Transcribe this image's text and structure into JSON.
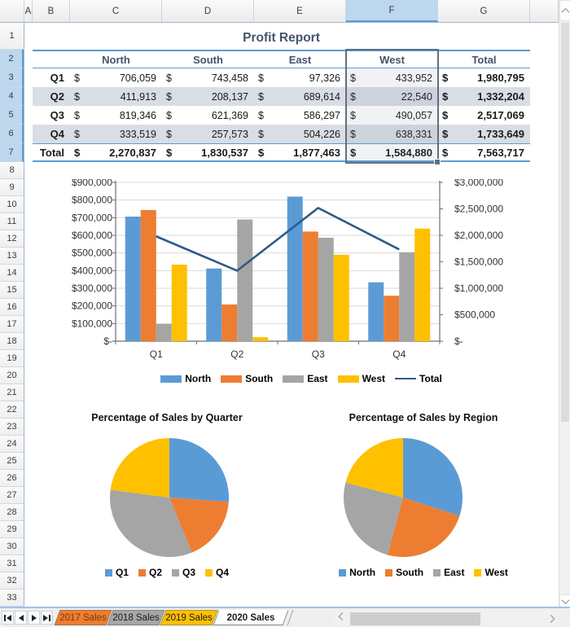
{
  "spreadsheet": {
    "column_letters": [
      "A",
      "B",
      "C",
      "D",
      "E",
      "F",
      "G"
    ],
    "selected_column": "F",
    "selected_row_first": 2,
    "selected_row_last": 7,
    "visible_row_first": 1,
    "visible_row_last": 33
  },
  "report": {
    "title": "Profit Report",
    "currency": "$",
    "table": {
      "region_headers": [
        "North",
        "South",
        "East",
        "West",
        "Total"
      ],
      "rows": [
        {
          "label": "Q1",
          "values": [
            "706,059",
            "743,458",
            "97,326",
            "433,952",
            "1,980,795"
          ]
        },
        {
          "label": "Q2",
          "values": [
            "411,913",
            "208,137",
            "689,614",
            "22,540",
            "1,332,204"
          ]
        },
        {
          "label": "Q3",
          "values": [
            "819,346",
            "621,369",
            "586,297",
            "490,057",
            "2,517,069"
          ]
        },
        {
          "label": "Q4",
          "values": [
            "333,519",
            "257,573",
            "504,226",
            "638,331",
            "1,733,649"
          ]
        },
        {
          "label": "Total",
          "values": [
            "2,270,837",
            "1,830,537",
            "1,877,463",
            "1,584,880",
            "7,563,717"
          ]
        }
      ]
    }
  },
  "chart_data": [
    {
      "type": "bar",
      "subtype": "bar-line-combo",
      "categories": [
        "Q1",
        "Q2",
        "Q3",
        "Q4"
      ],
      "series": [
        {
          "name": "North",
          "kind": "bar",
          "color": "#5B9BD5",
          "axis": "left",
          "values": [
            706059,
            411913,
            819346,
            333519
          ]
        },
        {
          "name": "South",
          "kind": "bar",
          "color": "#ED7D31",
          "axis": "left",
          "values": [
            743458,
            208137,
            621369,
            257573
          ]
        },
        {
          "name": "East",
          "kind": "bar",
          "color": "#A5A5A5",
          "axis": "left",
          "values": [
            97326,
            689614,
            586297,
            504226
          ]
        },
        {
          "name": "West",
          "kind": "bar",
          "color": "#FFC000",
          "axis": "left",
          "values": [
            433952,
            22540,
            490057,
            638331
          ]
        },
        {
          "name": "Total",
          "kind": "line",
          "color": "#2E5A88",
          "axis": "right",
          "values": [
            1980795,
            1332204,
            2517069,
            1733649
          ]
        }
      ],
      "left_axis": {
        "min": 0,
        "max": 900000,
        "step": 100000,
        "tick_labels": [
          "$-",
          "$100,000",
          "$200,000",
          "$300,000",
          "$400,000",
          "$500,000",
          "$600,000",
          "$700,000",
          "$800,000",
          "$900,000"
        ]
      },
      "right_axis": {
        "min": 0,
        "max": 3000000,
        "step": 500000,
        "tick_labels": [
          "$-",
          "$500,000",
          "$1,000,000",
          "$1,500,000",
          "$2,000,000",
          "$2,500,000",
          "$3,000,000"
        ]
      },
      "grid": true,
      "legend_position": "bottom"
    },
    {
      "type": "pie",
      "title": "Percentage of Sales by Quarter",
      "labels": [
        "Q1",
        "Q2",
        "Q3",
        "Q4"
      ],
      "values": [
        1980795,
        1332204,
        2517069,
        1733649
      ],
      "colors": [
        "#5B9BD5",
        "#ED7D31",
        "#A5A5A5",
        "#FFC000"
      ],
      "start_angle": "top",
      "direction": "clockwise",
      "legend_position": "bottom"
    },
    {
      "type": "pie",
      "title": "Percentage of Sales by Region",
      "labels": [
        "North",
        "South",
        "East",
        "West"
      ],
      "values": [
        2270837,
        1830537,
        1877463,
        1584880
      ],
      "colors": [
        "#5B9BD5",
        "#ED7D31",
        "#A5A5A5",
        "#FFC000"
      ],
      "start_angle": "top",
      "direction": "clockwise",
      "legend_position": "bottom"
    }
  ],
  "sheet_tabs": {
    "tabs": [
      {
        "label": "2017 Sales",
        "fill": "#ED7D31",
        "text_color": "#7B3A10",
        "active": false
      },
      {
        "label": "2018 Sales",
        "fill": "#A6A6A6",
        "text_color": "#1a1a1a",
        "active": false
      },
      {
        "label": "2019 Sales",
        "fill": "#FFC000",
        "text_color": "#1a1a1a",
        "active": false
      },
      {
        "label": "2020 Sales",
        "fill": "#FFFFFF",
        "text_color": "#1a1a1a",
        "active": true
      }
    ]
  },
  "icons": {
    "sheet_nav": [
      "first-sheet-icon",
      "previous-sheet-icon",
      "next-sheet-icon",
      "last-sheet-icon"
    ],
    "vertical_scrollbar": [
      "scroll-up-icon",
      "scroll-down-icon"
    ],
    "horizontal_scrollbar": [
      "scroll-left-icon",
      "scroll-right-icon"
    ]
  },
  "colors": {
    "accent_blue": "#5B9BD5",
    "header_text": "#44546A",
    "row_stripe": "#D9DDE4",
    "selected_header_fill": "#BDD7EE",
    "selection_border": "#5F7082",
    "tab_bar_border": "#9DC3E6"
  }
}
